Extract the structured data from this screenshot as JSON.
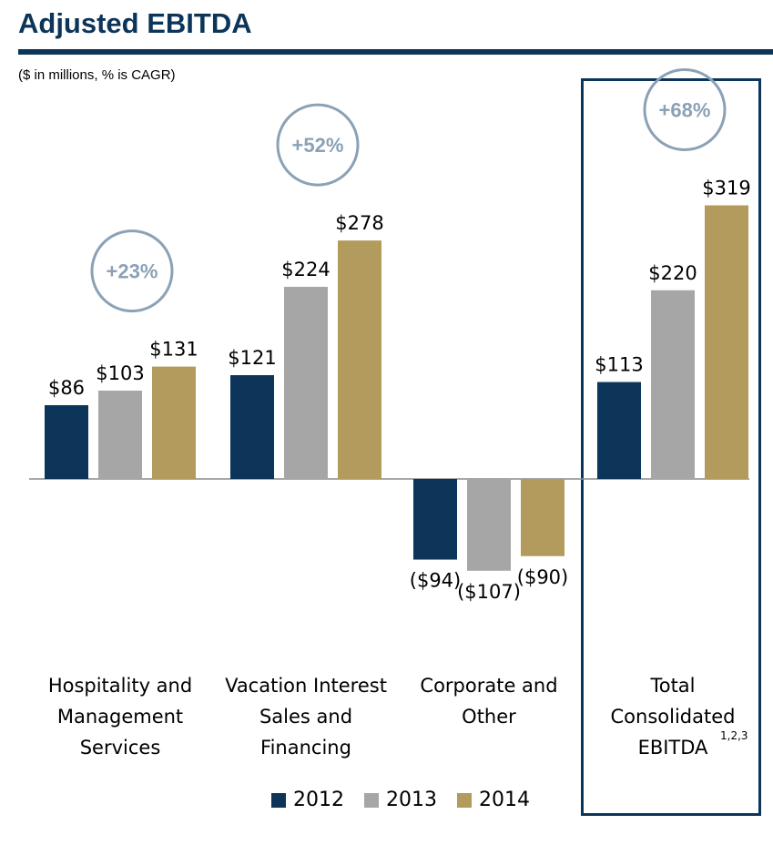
{
  "header": {
    "title": "Adjusted EBITDA",
    "subtitle": "($ in millions, % is CAGR)"
  },
  "colors": {
    "2012": "#0c3559",
    "2013": "#a6a6a6",
    "2014": "#b39b5e",
    "title": "#0c3559",
    "badge": "#8aa1b6"
  },
  "chart_data": {
    "type": "bar",
    "categories": [
      [
        "Hospitality and",
        "Management",
        "Services"
      ],
      [
        "Vacation Interest",
        "Sales and",
        "Financing"
      ],
      [
        "Corporate and",
        "Other"
      ],
      [
        "Total",
        "Consolidated",
        "EBITDA"
      ]
    ],
    "category_footnotes": [
      "",
      "",
      "",
      "1,2,3"
    ],
    "series": [
      {
        "name": "2012",
        "values": [
          86,
          121,
          -94,
          113
        ],
        "labels": [
          "$86",
          "$121",
          "($94)",
          "$113"
        ]
      },
      {
        "name": "2013",
        "values": [
          103,
          224,
          -107,
          220
        ],
        "labels": [
          "$103",
          "$224",
          "($107)",
          "$220"
        ]
      },
      {
        "name": "2014",
        "values": [
          131,
          278,
          -90,
          319
        ],
        "labels": [
          "$131",
          "$278",
          "($90)",
          "$319"
        ]
      }
    ],
    "cagr_badges": [
      "+23%",
      "+52%",
      "",
      "+68%"
    ],
    "highlighted_category": "Total Consolidated EBITDA",
    "ylim": [
      -130,
      420
    ],
    "legend_position": "bottom",
    "grid": false,
    "xlabel": "",
    "ylabel": ""
  }
}
